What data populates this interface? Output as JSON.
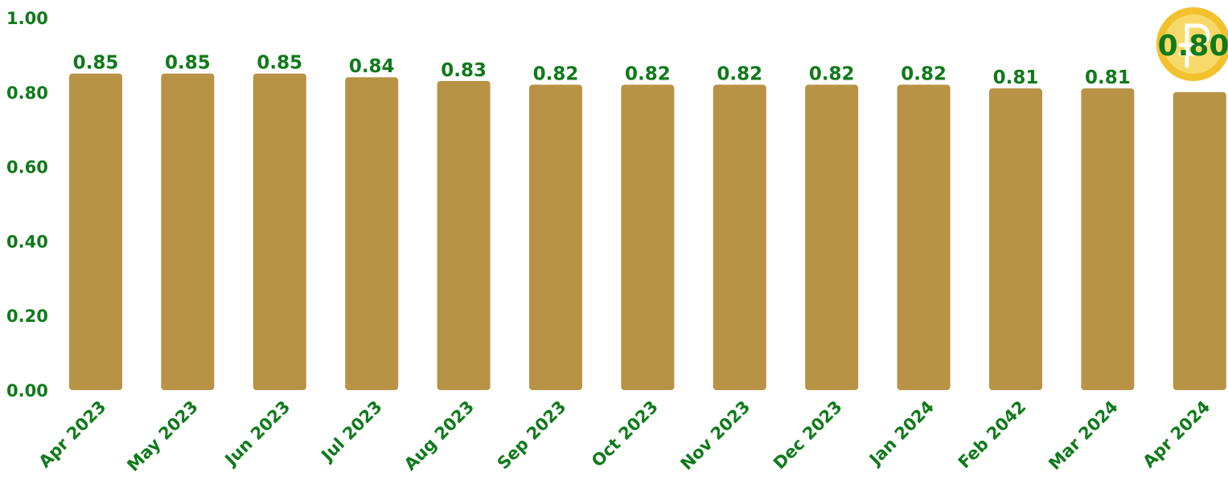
{
  "chart_data": {
    "type": "bar",
    "categories": [
      "Apr 2023",
      "May 2023",
      "Jun 2023",
      "Jul 2023",
      "Aug 2023",
      "Sep 2023",
      "Oct 2023",
      "Nov 2023",
      "Dec 2023",
      "Jan 2024",
      "Feb 2042",
      "Mar 2024",
      "Apr 2024"
    ],
    "values": [
      0.85,
      0.85,
      0.85,
      0.84,
      0.83,
      0.82,
      0.82,
      0.82,
      0.82,
      0.82,
      0.81,
      0.81,
      0.8
    ],
    "data_labels": [
      "0.85",
      "0.85",
      "0.85",
      "0.84",
      "0.83",
      "0.82",
      "0.82",
      "0.82",
      "0.82",
      "0.82",
      "0.81",
      "0.81",
      "0.80"
    ],
    "yticks": [
      "0.00",
      "0.20",
      "0.40",
      "0.60",
      "0.80",
      "1.00"
    ],
    "ylim": [
      0,
      1
    ],
    "title": "",
    "xlabel": "",
    "ylabel": "",
    "grid": false,
    "legend": "none",
    "colors": {
      "bar": "#b89346",
      "text": "#0f7a1a",
      "coin_outer": "#f2c12e",
      "coin_inner": "#f7d96a",
      "coin_symbol": "#ffffff"
    },
    "coin_icon": "ruble-coin-icon"
  }
}
